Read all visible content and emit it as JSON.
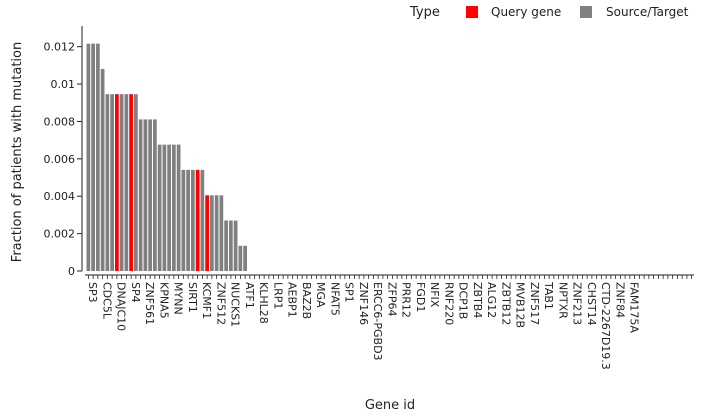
{
  "chart_data": {
    "type": "bar",
    "title": "",
    "xlabel": "Gene id",
    "ylabel": "Fraction of patients with mutation",
    "ylim": [
      0,
      0.013
    ],
    "yticks": [
      0,
      0.002,
      0.004,
      0.006,
      0.008,
      0.01,
      0.012
    ],
    "ytick_labels": [
      "0",
      "0.002",
      "0.004",
      "0.006",
      "0.008",
      "0.01",
      "0.012"
    ],
    "grid": false,
    "legend": {
      "title": "Type",
      "placement": "top-right",
      "entries": [
        {
          "label": "Query gene",
          "color": "#ff0000"
        },
        {
          "label": "Source/Target",
          "color": "#808080"
        }
      ]
    },
    "colors": {
      "query": "#ff0000",
      "source": "#808080"
    },
    "bars": [
      {
        "v": 0.01216,
        "t": "source"
      },
      {
        "v": 0.01216,
        "t": "source"
      },
      {
        "v": 0.01216,
        "t": "source"
      },
      {
        "v": 0.01081,
        "t": "source"
      },
      {
        "v": 0.00946,
        "t": "source"
      },
      {
        "v": 0.00946,
        "t": "source"
      },
      {
        "v": 0.00946,
        "t": "query"
      },
      {
        "v": 0.00946,
        "t": "source"
      },
      {
        "v": 0.00946,
        "t": "source"
      },
      {
        "v": 0.00946,
        "t": "query"
      },
      {
        "v": 0.00946,
        "t": "source"
      },
      {
        "v": 0.00811,
        "t": "source"
      },
      {
        "v": 0.00811,
        "t": "source"
      },
      {
        "v": 0.00811,
        "t": "source"
      },
      {
        "v": 0.00811,
        "t": "source"
      },
      {
        "v": 0.00676,
        "t": "source"
      },
      {
        "v": 0.00676,
        "t": "source"
      },
      {
        "v": 0.00676,
        "t": "source"
      },
      {
        "v": 0.00676,
        "t": "source"
      },
      {
        "v": 0.00676,
        "t": "source"
      },
      {
        "v": 0.00541,
        "t": "source"
      },
      {
        "v": 0.00541,
        "t": "source"
      },
      {
        "v": 0.00541,
        "t": "source"
      },
      {
        "v": 0.00541,
        "t": "query"
      },
      {
        "v": 0.00541,
        "t": "source"
      },
      {
        "v": 0.00405,
        "t": "query"
      },
      {
        "v": 0.00405,
        "t": "source"
      },
      {
        "v": 0.00405,
        "t": "source"
      },
      {
        "v": 0.00405,
        "t": "source"
      },
      {
        "v": 0.0027,
        "t": "source"
      },
      {
        "v": 0.0027,
        "t": "source"
      },
      {
        "v": 0.0027,
        "t": "source"
      },
      {
        "v": 0.00135,
        "t": "source"
      },
      {
        "v": 0.00135,
        "t": "source"
      }
    ],
    "n_categories": 128,
    "x_tick_labels": [
      "SP3",
      "CDC5L",
      "DNAJC10",
      "SP4",
      "ZNF561",
      "KPNA5",
      "MYNN",
      "SIRT1",
      "KCMF1",
      "ZNF512",
      "NUCKS1",
      "ATF1",
      "KLHL28",
      "LRP1",
      "AEBP1",
      "BAZ2B",
      "MGA",
      "NFAT5",
      "SP1",
      "ZNF146",
      "ERCC6-PGBD3",
      "ZFP64",
      "PRR12",
      "FGD1",
      "NFIX",
      "RNF220",
      "DCP1B",
      "ZBTB4",
      "ALG12",
      "ZBTB12",
      "MVB12B",
      "ZNF517",
      "TAB1",
      "NPTXR",
      "ZNF213",
      "CHST14",
      "CTD-2267D19.3",
      "ZNF84",
      "FAM175A"
    ]
  }
}
